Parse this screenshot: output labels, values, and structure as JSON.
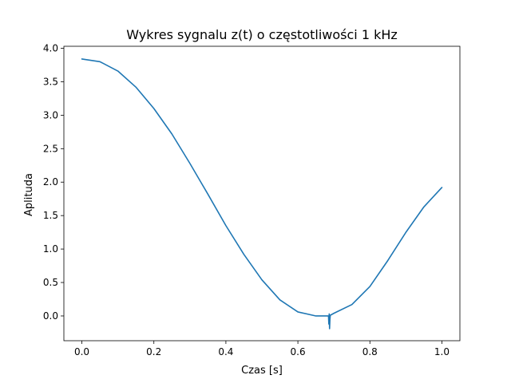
{
  "chart_data": {
    "type": "line",
    "title": "Wykres sygnalu z(t) o częstotliwości 1 kHz",
    "xlabel": "Czas [s]",
    "ylabel": "Aplituda",
    "xlim": [
      -0.05,
      1.05
    ],
    "ylim": [
      -0.37,
      4.03
    ],
    "xticks": [
      0.0,
      0.2,
      0.4,
      0.6,
      0.8,
      1.0
    ],
    "xtick_labels": [
      "0.0",
      "0.2",
      "0.4",
      "0.6",
      "0.8",
      "1.0"
    ],
    "yticks": [
      0.0,
      0.5,
      1.0,
      1.5,
      2.0,
      2.5,
      3.0,
      3.5,
      4.0
    ],
    "ytick_labels": [
      "0.0",
      "0.5",
      "1.0",
      "1.5",
      "2.0",
      "2.5",
      "3.0",
      "3.5",
      "4.0"
    ],
    "grid": false,
    "series": [
      {
        "color": "#1f77b4",
        "x": [
          0.0,
          0.05,
          0.1,
          0.15,
          0.2,
          0.25,
          0.3,
          0.35,
          0.4,
          0.45,
          0.5,
          0.55,
          0.6,
          0.65,
          0.67,
          0.685,
          0.686,
          0.687,
          0.688,
          0.689,
          0.69,
          0.7,
          0.75,
          0.8,
          0.85,
          0.9,
          0.95,
          1.0
        ],
        "y": [
          3.84,
          3.8,
          3.66,
          3.42,
          3.1,
          2.72,
          2.28,
          1.82,
          1.35,
          0.92,
          0.54,
          0.24,
          0.06,
          0.0,
          0.0,
          0.0,
          -0.12,
          0.03,
          -0.19,
          -0.05,
          0.01,
          0.04,
          0.17,
          0.44,
          0.83,
          1.25,
          1.63,
          1.92
        ]
      }
    ]
  }
}
